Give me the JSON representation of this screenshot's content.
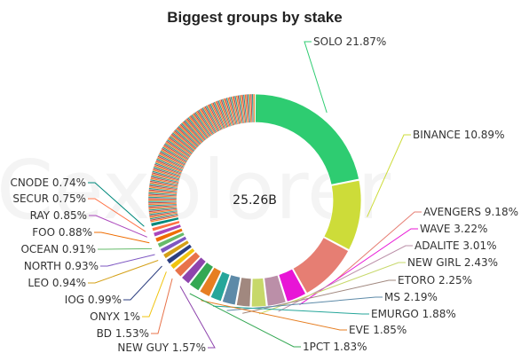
{
  "chart_data": {
    "type": "pie",
    "variant": "donut",
    "title": "Biggest groups by stake",
    "center_label": "25.26B",
    "watermark": "Cexplorer",
    "slices": [
      {
        "label": "SOLO",
        "value": 21.87,
        "color": "#2ecc71"
      },
      {
        "label": "BINANCE",
        "value": 10.89,
        "color": "#cddc39"
      },
      {
        "label": "AVENGERS",
        "value": 9.18,
        "color": "#e67e73"
      },
      {
        "label": "WAVE",
        "value": 3.22,
        "color": "#e815d6"
      },
      {
        "label": "ADALITE",
        "value": 3.01,
        "color": "#bb8fa8"
      },
      {
        "label": "NEW GIRL",
        "value": 2.43,
        "color": "#c7d86a"
      },
      {
        "label": "ETORO",
        "value": 2.25,
        "color": "#a1887f"
      },
      {
        "label": "MS",
        "value": 2.19,
        "color": "#5d8aa8"
      },
      {
        "label": "EMURGO",
        "value": 1.88,
        "color": "#26a69a"
      },
      {
        "label": "EVE",
        "value": 1.85,
        "color": "#e67e22"
      },
      {
        "label": "1PCT",
        "value": 1.83,
        "color": "#34a853"
      },
      {
        "label": "NEW GUY",
        "value": 1.57,
        "color": "#8e44ad"
      },
      {
        "label": "BD",
        "value": 1.53,
        "color": "#e8734a"
      },
      {
        "label": "ONYX",
        "value": 1.0,
        "color": "#f1c40f"
      },
      {
        "label": "IOG",
        "value": 0.99,
        "color": "#2c3e80"
      },
      {
        "label": "LEO",
        "value": 0.94,
        "color": "#d4a017"
      },
      {
        "label": "NORTH",
        "value": 0.93,
        "color": "#7e57c2"
      },
      {
        "label": "OCEAN",
        "value": 0.91,
        "color": "#66bb6a"
      },
      {
        "label": "FOO",
        "value": 0.88,
        "color": "#ef6c00"
      },
      {
        "label": "RAY",
        "value": 0.85,
        "color": "#ab47bc"
      },
      {
        "label": "SECUR",
        "value": 0.75,
        "color": "#ff7043"
      },
      {
        "label": "CNODE",
        "value": 0.74,
        "color": "#00897b"
      }
    ],
    "labels": [
      "SOLO 21.87%",
      "BINANCE 10.89%",
      "AVENGERS 9.18%",
      "WAVE 3.22%",
      "ADALITE 3.01%",
      "NEW GIRL 2.43%",
      "ETORO 2.25%",
      "MS 2.19%",
      "EMURGO 1.88%",
      "EVE 1.85%",
      "1PCT 1.83%",
      "NEW GUY 1.57%",
      "BD 1.53%",
      "ONYX 1%",
      "IOG 0.99%",
      "LEO 0.94%",
      "NORTH 0.93%",
      "OCEAN 0.91%",
      "FOO 0.88%",
      "RAY 0.85%",
      "SECUR 0.75%",
      "CNODE 0.74%"
    ],
    "legend": "none"
  }
}
